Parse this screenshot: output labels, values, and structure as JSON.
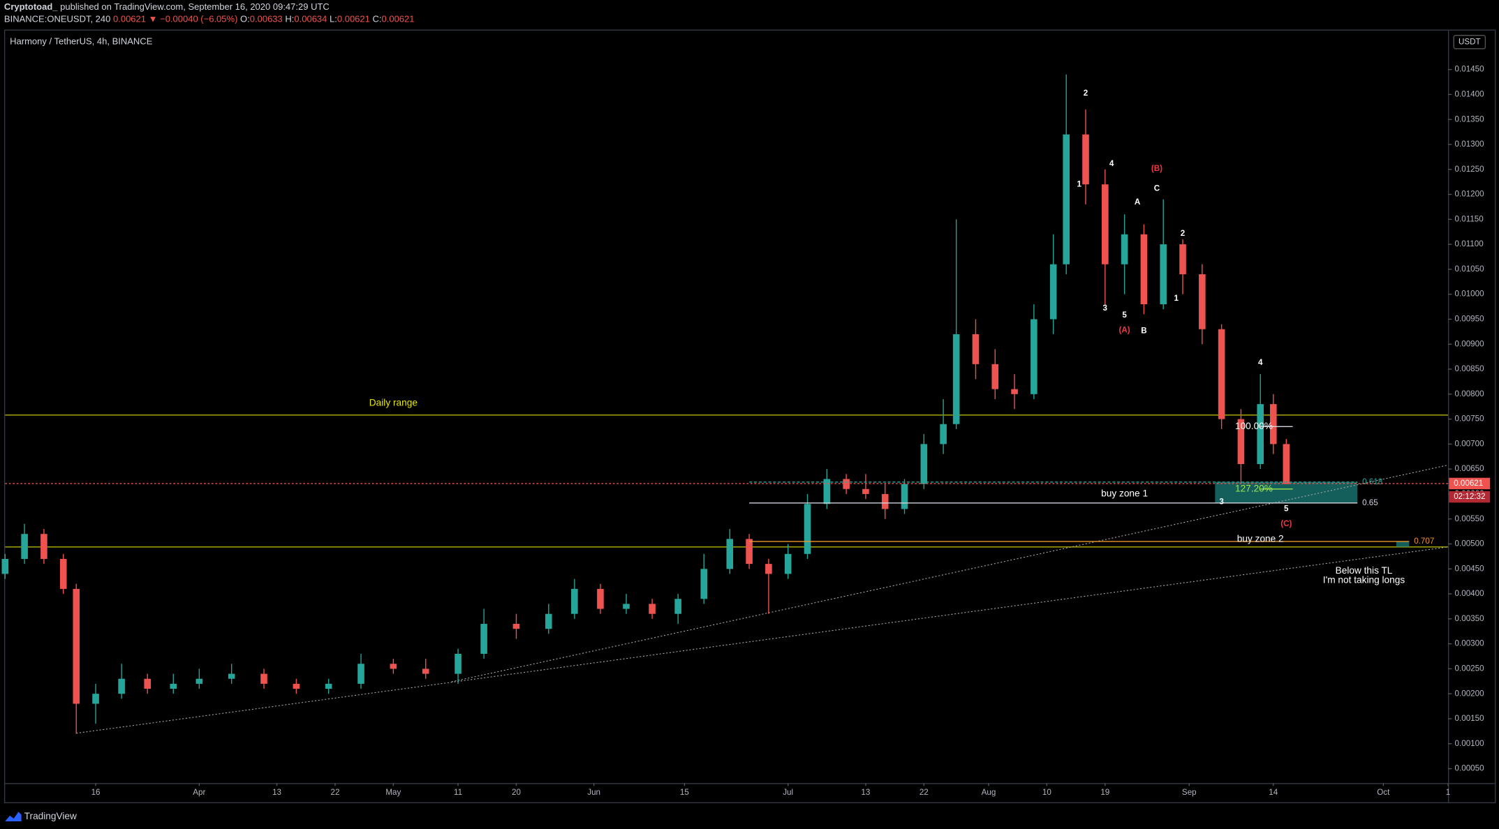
{
  "header": {
    "author": "Cryptotoad_",
    "published": "published on TradingView.com, September 16, 2020 09:47:29 UTC",
    "symbol": "BINANCE:ONEUSDT, 240",
    "last": "0.00621",
    "change": "▼ −0.00040 (−6.05%)",
    "ohlc": [
      {
        "label": "O:",
        "value": "0.00633"
      },
      {
        "label": "H:",
        "value": "0.00634"
      },
      {
        "label": "L:",
        "value": "0.00621"
      },
      {
        "label": "C:",
        "value": "0.00621"
      }
    ]
  },
  "footer": {
    "brand": "TradingView"
  },
  "chart_data": {
    "type": "candlestick",
    "title": "Harmony / TetherUS, 4h, BINANCE",
    "currency": "USDT",
    "countdown": "02:12:32",
    "grid": false,
    "up_color": "#26a69a",
    "down_color": "#ef5350",
    "xlim": [
      "03-02",
      "10-11"
    ],
    "ylim": [
      0.00021,
      0.01528
    ],
    "xticks": [
      {
        "value": "03-16",
        "label": "16"
      },
      {
        "value": "04-01",
        "label": "Apr"
      },
      {
        "value": "04-13",
        "label": "13"
      },
      {
        "value": "04-22",
        "label": "22"
      },
      {
        "value": "05-01",
        "label": "May"
      },
      {
        "value": "05-11",
        "label": "11"
      },
      {
        "value": "05-20",
        "label": "20"
      },
      {
        "value": "06-01",
        "label": "Jun"
      },
      {
        "value": "06-15",
        "label": "15"
      },
      {
        "value": "07-01",
        "label": "Jul"
      },
      {
        "value": "07-13",
        "label": "13"
      },
      {
        "value": "07-22",
        "label": "22"
      },
      {
        "value": "08-01",
        "label": "Aug"
      },
      {
        "value": "08-10",
        "label": "10"
      },
      {
        "value": "08-19",
        "label": "19"
      },
      {
        "value": "09-01",
        "label": "Sep"
      },
      {
        "value": "09-14",
        "label": "14"
      },
      {
        "value": "10-01",
        "label": "Oct"
      },
      {
        "value": "10-11",
        "label": "1"
      }
    ],
    "yticks": [
      {
        "value": 0.0005,
        "label": "0.00050"
      },
      {
        "value": 0.001,
        "label": "0.00100"
      },
      {
        "value": 0.0015,
        "label": "0.00150"
      },
      {
        "value": 0.002,
        "label": "0.00200"
      },
      {
        "value": 0.0025,
        "label": "0.00250"
      },
      {
        "value": 0.003,
        "label": "0.00300"
      },
      {
        "value": 0.0035,
        "label": "0.00350"
      },
      {
        "value": 0.004,
        "label": "0.00400"
      },
      {
        "value": 0.0045,
        "label": "0.00450"
      },
      {
        "value": 0.005,
        "label": "0.00500"
      },
      {
        "value": 0.0055,
        "label": "0.00550"
      },
      {
        "value": 0.006,
        "label": "0.00600"
      },
      {
        "value": 0.0065,
        "label": "0.00650"
      },
      {
        "value": 0.007,
        "label": "0.00700"
      },
      {
        "value": 0.0075,
        "label": "0.00750"
      },
      {
        "value": 0.008,
        "label": "0.00800"
      },
      {
        "value": 0.0085,
        "label": "0.00850"
      },
      {
        "value": 0.009,
        "label": "0.00900"
      },
      {
        "value": 0.0095,
        "label": "0.00950"
      },
      {
        "value": 0.01,
        "label": "0.01000"
      },
      {
        "value": 0.0105,
        "label": "0.01050"
      },
      {
        "value": 0.011,
        "label": "0.01100"
      },
      {
        "value": 0.0115,
        "label": "0.01150"
      },
      {
        "value": 0.012,
        "label": "0.01200"
      },
      {
        "value": 0.0125,
        "label": "0.01250"
      },
      {
        "value": 0.013,
        "label": "0.01300"
      },
      {
        "value": 0.0135,
        "label": "0.01350"
      },
      {
        "value": 0.014,
        "label": "0.01400"
      },
      {
        "value": 0.0145,
        "label": "0.01450"
      }
    ],
    "candles": {
      "x": [
        "03-02",
        "03-05",
        "03-08",
        "03-11",
        "03-13",
        "03-16",
        "03-20",
        "03-24",
        "03-28",
        "04-01",
        "04-06",
        "04-11",
        "04-16",
        "04-21",
        "04-26",
        "05-01",
        "05-06",
        "05-11",
        "05-15",
        "05-20",
        "05-25",
        "05-29",
        "06-02",
        "06-06",
        "06-10",
        "06-14",
        "06-18",
        "06-22",
        "06-25",
        "06-28",
        "07-01",
        "07-04",
        "07-07",
        "07-10",
        "07-13",
        "07-16",
        "07-19",
        "07-22",
        "07-25",
        "07-27",
        "07-30",
        "08-02",
        "08-05",
        "08-08",
        "08-11",
        "08-13",
        "08-16",
        "08-19",
        "08-22",
        "08-25",
        "08-28",
        "08-31",
        "09-03",
        "09-06",
        "09-09",
        "09-12",
        "09-14",
        "09-16"
      ],
      "open": [
        0.0044,
        0.0047,
        0.0052,
        0.0047,
        0.0041,
        0.0018,
        0.002,
        0.0023,
        0.0021,
        0.0022,
        0.0023,
        0.0024,
        0.0022,
        0.0021,
        0.0022,
        0.0026,
        0.0025,
        0.0024,
        0.0028,
        0.0034,
        0.0033,
        0.0036,
        0.0041,
        0.0037,
        0.0038,
        0.0036,
        0.0039,
        0.0045,
        0.0051,
        0.0046,
        0.0044,
        0.0048,
        0.0058,
        0.0063,
        0.0061,
        0.006,
        0.0057,
        0.0062,
        0.007,
        0.0074,
        0.0092,
        0.0086,
        0.0081,
        0.008,
        0.0095,
        0.0106,
        0.0132,
        0.0122,
        0.0106,
        0.0112,
        0.0098,
        0.011,
        0.0104,
        0.0093,
        0.0075,
        0.0066,
        0.0078,
        0.007
      ],
      "high": [
        0.0048,
        0.0054,
        0.0053,
        0.0048,
        0.0042,
        0.0022,
        0.0026,
        0.0024,
        0.0024,
        0.0025,
        0.0026,
        0.0025,
        0.0023,
        0.0023,
        0.0028,
        0.0027,
        0.0027,
        0.0029,
        0.0037,
        0.0036,
        0.0038,
        0.0043,
        0.0042,
        0.004,
        0.0039,
        0.004,
        0.0048,
        0.0053,
        0.0052,
        0.0047,
        0.005,
        0.006,
        0.0065,
        0.0064,
        0.0064,
        0.0062,
        0.0063,
        0.0072,
        0.0079,
        0.0115,
        0.0095,
        0.0089,
        0.0084,
        0.0098,
        0.0112,
        0.0144,
        0.0137,
        0.0125,
        0.0116,
        0.0114,
        0.0119,
        0.0111,
        0.0106,
        0.0094,
        0.0077,
        0.0084,
        0.008,
        0.0071
      ],
      "low": [
        0.0043,
        0.0046,
        0.0046,
        0.004,
        0.0012,
        0.0014,
        0.0019,
        0.002,
        0.002,
        0.0021,
        0.0022,
        0.0021,
        0.002,
        0.002,
        0.0021,
        0.0024,
        0.0023,
        0.0022,
        0.0027,
        0.0031,
        0.0032,
        0.0035,
        0.0036,
        0.0036,
        0.0035,
        0.0034,
        0.0038,
        0.0044,
        0.0045,
        0.0036,
        0.0043,
        0.0047,
        0.0057,
        0.006,
        0.0059,
        0.0055,
        0.0056,
        0.0061,
        0.0068,
        0.0073,
        0.0083,
        0.0079,
        0.0077,
        0.0079,
        0.0092,
        0.0104,
        0.0118,
        0.0098,
        0.01,
        0.0096,
        0.0097,
        0.01,
        0.009,
        0.0073,
        0.0062,
        0.0065,
        0.0068,
        0.0062
      ],
      "close": [
        0.0047,
        0.0052,
        0.0047,
        0.0041,
        0.0018,
        0.002,
        0.0023,
        0.0021,
        0.0022,
        0.0023,
        0.0024,
        0.0022,
        0.0021,
        0.0022,
        0.0026,
        0.0025,
        0.0024,
        0.0028,
        0.0034,
        0.0033,
        0.0036,
        0.0041,
        0.0037,
        0.0038,
        0.0036,
        0.0039,
        0.0045,
        0.0051,
        0.0046,
        0.0044,
        0.0048,
        0.0058,
        0.0063,
        0.0061,
        0.006,
        0.0057,
        0.0062,
        0.007,
        0.0074,
        0.0092,
        0.0086,
        0.0081,
        0.008,
        0.0095,
        0.0106,
        0.0132,
        0.0122,
        0.0106,
        0.0112,
        0.0098,
        0.011,
        0.0104,
        0.0093,
        0.0075,
        0.0066,
        0.0078,
        0.007,
        0.0062
      ]
    },
    "current_price": {
      "y": 0.00621,
      "label": "0.00621",
      "color": "#ef5350"
    },
    "hlines": [
      {
        "y": 0.00758,
        "color": "#b5b500"
      },
      {
        "y": 0.00494,
        "color": "#b5b500"
      }
    ],
    "trendlines": [
      {
        "x": [
          "03-13",
          "10-11"
        ],
        "y": [
          0.00121,
          0.00494
        ]
      },
      {
        "x": [
          "05-10",
          "10-11"
        ],
        "y": [
          0.00224,
          0.00658
        ]
      }
    ],
    "boxes": [
      {
        "x": [
          "09-05",
          "09-27"
        ],
        "y": [
          0.00582,
          0.00624
        ],
        "color": "#1b7f7a"
      },
      {
        "x": [
          "10-03",
          "10-05"
        ],
        "y": [
          0.00494,
          0.00505
        ],
        "color": "#1b7f7a"
      }
    ],
    "segments": [
      {
        "x": [
          "06-25",
          "09-27"
        ],
        "y": 0.00624,
        "label": "0.618",
        "color": "#26a69a",
        "dashed": true
      },
      {
        "x": [
          "06-25",
          "09-27"
        ],
        "y": 0.00582,
        "label": "0.65",
        "color": "#d1d4dc",
        "dashed": false
      },
      {
        "x": [
          "06-25",
          "10-05"
        ],
        "y": 0.00505,
        "label": "0.707",
        "color": "#f0932b",
        "dashed": false
      },
      {
        "x": [
          "09-12",
          "09-17"
        ],
        "y": 0.00735,
        "color": "#d1d4dc",
        "dashed": false
      },
      {
        "x": [
          "09-12",
          "09-17"
        ],
        "y": 0.0061,
        "color": "#9ee64e",
        "dashed": false
      }
    ],
    "annotations": [
      {
        "text": "2",
        "x": "08-16",
        "y": 0.01402,
        "color": "#ffffff"
      },
      {
        "text": "1",
        "x": "08-15",
        "y": 0.0122,
        "color": "#ffffff"
      },
      {
        "text": "4",
        "x": "08-20",
        "y": 0.01261,
        "color": "#ffffff"
      },
      {
        "text": "(B)",
        "x": "08-27",
        "y": 0.01251,
        "color": "#f23645"
      },
      {
        "text": "C",
        "x": "08-27",
        "y": 0.01211,
        "color": "#ffffff"
      },
      {
        "text": "A",
        "x": "08-24",
        "y": 0.01184,
        "color": "#ffffff"
      },
      {
        "text": "2",
        "x": "08-31",
        "y": 0.01121,
        "color": "#ffffff"
      },
      {
        "text": "1",
        "x": "08-30",
        "y": 0.00991,
        "color": "#ffffff"
      },
      {
        "text": "3",
        "x": "08-19",
        "y": 0.00972,
        "color": "#ffffff"
      },
      {
        "text": "5",
        "x": "08-22",
        "y": 0.00958,
        "color": "#ffffff"
      },
      {
        "text": "(A)",
        "x": "08-22",
        "y": 0.00928,
        "color": "#f23645"
      },
      {
        "text": "B",
        "x": "08-25",
        "y": 0.00926,
        "color": "#ffffff"
      },
      {
        "text": "4",
        "x": "09-12",
        "y": 0.00863,
        "color": "#ffffff"
      },
      {
        "text": "3",
        "x": "09-06",
        "y": 0.00584,
        "color": "#ffffff"
      },
      {
        "text": "5",
        "x": "09-16",
        "y": 0.0057,
        "color": "#ffffff"
      },
      {
        "text": "(C)",
        "x": "09-16",
        "y": 0.0054,
        "color": "#f23645"
      },
      {
        "text": "100.00%",
        "x": "09-11",
        "y": 0.00735,
        "color": "#ffffff"
      },
      {
        "text": "127.20%",
        "x": "09-11",
        "y": 0.0061,
        "color": "#9ee64e"
      },
      {
        "text": "buy zone 1",
        "x": "08-22",
        "y": 0.006,
        "color": "#ffffff"
      },
      {
        "text": "buy zone 2",
        "x": "09-12",
        "y": 0.00509,
        "color": "#ffffff"
      },
      {
        "text": "Daily range",
        "x": "05-01",
        "y": 0.00782,
        "color": "#e6e600"
      },
      {
        "text": "Below this TL",
        "x": "09-28",
        "y": 0.00446,
        "color": "#ffffff"
      },
      {
        "text": "I'm not taking longs",
        "x": "09-28",
        "y": 0.00427,
        "color": "#ffffff"
      }
    ]
  }
}
